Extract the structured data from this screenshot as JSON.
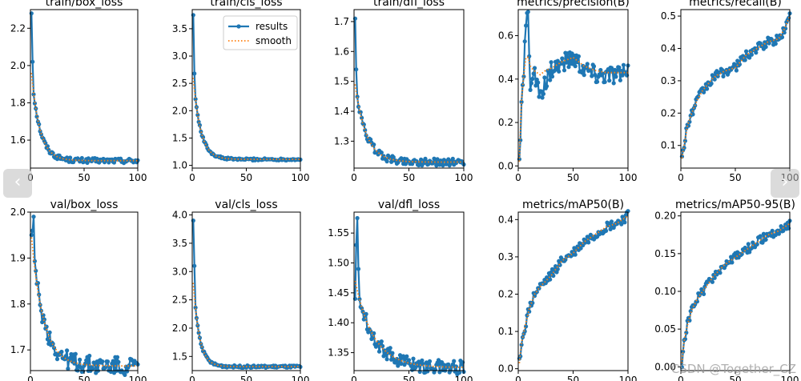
{
  "colors": {
    "results": "#1f77b4",
    "smooth": "#ff7f0e",
    "axis": "#000000"
  },
  "legend": {
    "results_label": "results",
    "smooth_label": "smooth",
    "placement": "top-right"
  },
  "navigation": {
    "prev_icon": "‹",
    "next_icon": "›"
  },
  "watermark": "CSDN @Together_CZ",
  "chart_data": [
    {
      "type": "line",
      "title": "train/box_loss",
      "xlim": [
        0,
        100
      ],
      "ylim": [
        1.45,
        2.3
      ],
      "xticks": [
        0,
        50,
        100
      ],
      "yticks": [
        1.6,
        1.8,
        2.0,
        2.2
      ],
      "ytick_labels": [
        "1.6",
        "1.8",
        "2.0",
        "2.2"
      ],
      "legend": false,
      "smooth_start": 1.96,
      "smooth_end": 1.49,
      "smooth_k": 0.13,
      "smooth_gap": 0.06,
      "noise": 0.013,
      "head_spikes": [
        2.28,
        2.02
      ],
      "series": [
        {
          "name": "results"
        },
        {
          "name": "smooth"
        }
      ]
    },
    {
      "type": "line",
      "title": "train/cls_loss",
      "xlim": [
        0,
        100
      ],
      "ylim": [
        0.95,
        3.85
      ],
      "xticks": [
        0,
        50,
        100
      ],
      "yticks": [
        1.0,
        1.5,
        2.0,
        2.5,
        3.0,
        3.5
      ],
      "ytick_labels": [
        "1.0",
        "1.5",
        "2.0",
        "2.5",
        "3.0",
        "3.5"
      ],
      "legend": true,
      "smooth_start": 2.6,
      "smooth_end": 1.11,
      "smooth_k": 0.15,
      "smooth_gap": 0.38,
      "noise": 0.02,
      "head_spikes": [
        3.75,
        2.68
      ],
      "series": [
        {
          "name": "results"
        },
        {
          "name": "smooth"
        }
      ]
    },
    {
      "type": "line",
      "title": "train/dfl_loss",
      "xlim": [
        0,
        100
      ],
      "ylim": [
        1.21,
        1.74
      ],
      "xticks": [
        0,
        50,
        100
      ],
      "yticks": [
        1.3,
        1.4,
        1.5,
        1.6,
        1.7
      ],
      "ytick_labels": [
        "1.3",
        "1.4",
        "1.5",
        "1.6",
        "1.7"
      ],
      "legend": false,
      "smooth_start": 1.49,
      "smooth_end": 1.23,
      "smooth_k": 0.1,
      "smooth_gap": 0.04,
      "noise": 0.012,
      "head_spikes": [
        1.71,
        1.54
      ],
      "series": [
        {
          "name": "results"
        },
        {
          "name": "smooth"
        }
      ]
    },
    {
      "type": "line",
      "title": "metrics/precision(B)",
      "xlim": [
        0,
        100
      ],
      "ylim": [
        -0.01,
        0.72
      ],
      "xticks": [
        0,
        50,
        100
      ],
      "yticks": [
        0.0,
        0.2,
        0.4,
        0.6
      ],
      "ytick_labels": [
        "0.0",
        "0.2",
        "0.4",
        "0.6"
      ],
      "legend": false,
      "noise": 0.045,
      "key_x": [
        1,
        3,
        5,
        7,
        9,
        11,
        14,
        20,
        25,
        30,
        40,
        50,
        60,
        70,
        80,
        90,
        100
      ],
      "key_y": [
        0.02,
        0.25,
        0.45,
        0.65,
        0.69,
        0.38,
        0.44,
        0.3,
        0.38,
        0.45,
        0.47,
        0.5,
        0.45,
        0.42,
        0.42,
        0.42,
        0.42
      ],
      "smooth_key_y": [
        0.02,
        0.3,
        0.42,
        0.5,
        0.5,
        0.46,
        0.44,
        0.42,
        0.44,
        0.45,
        0.48,
        0.5,
        0.46,
        0.44,
        0.43,
        0.43,
        0.43
      ],
      "series": [
        {
          "name": "results"
        },
        {
          "name": "smooth"
        }
      ]
    },
    {
      "type": "line",
      "title": "metrics/recall(B)",
      "xlim": [
        0,
        100
      ],
      "ylim": [
        0.03,
        0.52
      ],
      "xticks": [
        0,
        50,
        100
      ],
      "yticks": [
        0.1,
        0.2,
        0.3,
        0.4,
        0.5
      ],
      "ytick_labels": [
        "0.1",
        "0.2",
        "0.3",
        "0.4",
        "0.5"
      ],
      "legend": false,
      "noise": 0.015,
      "key_x": [
        1,
        3,
        6,
        10,
        15,
        20,
        25,
        30,
        40,
        50,
        60,
        70,
        80,
        90,
        95,
        100
      ],
      "key_y": [
        0.06,
        0.1,
        0.16,
        0.2,
        0.24,
        0.27,
        0.29,
        0.31,
        0.33,
        0.34,
        0.38,
        0.4,
        0.42,
        0.43,
        0.46,
        0.5
      ],
      "series": [
        {
          "name": "results"
        },
        {
          "name": "smooth"
        }
      ]
    },
    {
      "type": "line",
      "title": "val/box_loss",
      "xlim": [
        0,
        100
      ],
      "ylim": [
        1.655,
        2.0
      ],
      "xticks": [
        0,
        50,
        100
      ],
      "yticks": [
        1.7,
        1.8,
        1.9,
        2.0
      ],
      "ytick_labels": [
        "1.7",
        "1.8",
        "1.9",
        "2.0"
      ],
      "legend": false,
      "smooth_start": 1.945,
      "smooth_end": 1.665,
      "smooth_k": 0.09,
      "smooth_gap": 0.08,
      "noise": 0.02,
      "head_spikes": [
        1.95,
        1.96,
        1.99
      ],
      "series": [
        {
          "name": "results"
        },
        {
          "name": "smooth"
        }
      ]
    },
    {
      "type": "line",
      "title": "val/cls_loss",
      "xlim": [
        0,
        100
      ],
      "ylim": [
        1.25,
        4.05
      ],
      "xticks": [
        0,
        50,
        100
      ],
      "yticks": [
        1.5,
        2.0,
        2.5,
        3.0,
        3.5,
        4.0
      ],
      "ytick_labels": [
        "1.5",
        "2.0",
        "2.5",
        "3.0",
        "3.5",
        "4.0"
      ],
      "legend": false,
      "smooth_start": 2.8,
      "smooth_end": 1.32,
      "smooth_k": 0.18,
      "smooth_gap": 0.12,
      "noise": 0.02,
      "head_spikes": [
        3.9,
        3.1
      ],
      "series": [
        {
          "name": "results"
        },
        {
          "name": "smooth"
        }
      ]
    },
    {
      "type": "line",
      "title": "val/dfl_loss",
      "xlim": [
        0,
        100
      ],
      "ylim": [
        1.32,
        1.585
      ],
      "xticks": [
        0,
        50,
        100
      ],
      "yticks": [
        1.35,
        1.4,
        1.45,
        1.5,
        1.55
      ],
      "ytick_labels": [
        "1.35",
        "1.40",
        "1.45",
        "1.50",
        "1.55"
      ],
      "legend": false,
      "smooth_start": 1.47,
      "smooth_end": 1.325,
      "smooth_k": 0.06,
      "smooth_gap": 0.01,
      "noise": 0.012,
      "head_spikes": [
        1.44,
        1.53,
        1.575,
        1.49
      ],
      "series": [
        {
          "name": "results"
        },
        {
          "name": "smooth"
        }
      ]
    },
    {
      "type": "line",
      "title": "metrics/mAP50(B)",
      "xlim": [
        0,
        100
      ],
      "ylim": [
        -0.005,
        0.42
      ],
      "xticks": [
        0,
        50,
        100
      ],
      "yticks": [
        0.0,
        0.1,
        0.2,
        0.3,
        0.4
      ],
      "ytick_labels": [
        "0.0",
        "0.1",
        "0.2",
        "0.3",
        "0.4"
      ],
      "legend": false,
      "noise": 0.013,
      "key_x": [
        1,
        3,
        6,
        10,
        15,
        20,
        30,
        40,
        50,
        60,
        70,
        80,
        90,
        100
      ],
      "key_y": [
        0.015,
        0.07,
        0.11,
        0.16,
        0.2,
        0.22,
        0.25,
        0.29,
        0.31,
        0.34,
        0.36,
        0.38,
        0.39,
        0.41
      ],
      "series": [
        {
          "name": "results"
        },
        {
          "name": "smooth"
        }
      ]
    },
    {
      "type": "line",
      "title": "metrics/mAP50-95(B)",
      "xlim": [
        0,
        100
      ],
      "ylim": [
        -0.005,
        0.205
      ],
      "xticks": [
        0,
        50,
        100
      ],
      "yticks": [
        0.0,
        0.05,
        0.1,
        0.15,
        0.2
      ],
      "ytick_labels": [
        "0.00",
        "0.05",
        "0.10",
        "0.15",
        "0.20"
      ],
      "legend": false,
      "noise": 0.006,
      "key_x": [
        1,
        3,
        6,
        10,
        15,
        20,
        30,
        40,
        50,
        60,
        70,
        80,
        90,
        100
      ],
      "key_y": [
        0.005,
        0.035,
        0.055,
        0.075,
        0.09,
        0.1,
        0.12,
        0.135,
        0.145,
        0.155,
        0.165,
        0.175,
        0.18,
        0.19
      ],
      "series": [
        {
          "name": "results"
        },
        {
          "name": "smooth"
        }
      ]
    }
  ]
}
